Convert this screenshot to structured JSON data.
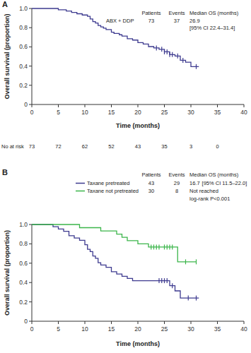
{
  "chart_data": [
    {
      "type": "step",
      "title": "A",
      "x_label": "Time (months)",
      "y_label": "Overall survival (proportion)",
      "xlim": [
        0,
        40
      ],
      "xticks": [
        0,
        5,
        10,
        15,
        20,
        25,
        30,
        35,
        40
      ],
      "ylim": [
        0,
        1
      ],
      "yticks": [
        0,
        0.2,
        0.4,
        0.6,
        0.8,
        {
          "value": 1,
          "label": "1.0"
        }
      ],
      "grid": false,
      "line_style": "step",
      "series": [
        {
          "name": "ABX + DDP",
          "color": "#3d3a8f",
          "x": [
            0,
            5,
            6.5,
            7.5,
            8.5,
            9.5,
            10.5,
            11,
            11.5,
            12,
            12.5,
            13,
            13.5,
            14,
            15,
            15.5,
            16.5,
            17,
            18,
            19,
            20,
            21,
            22,
            23,
            24,
            25,
            26,
            27,
            28,
            29,
            30,
            31.5
          ],
          "values": [
            1,
            0.986,
            0.973,
            0.959,
            0.945,
            0.932,
            0.918,
            0.89,
            0.863,
            0.849,
            0.822,
            0.808,
            0.795,
            0.781,
            0.753,
            0.74,
            0.726,
            0.712,
            0.685,
            0.671,
            0.644,
            0.63,
            0.603,
            0.589,
            0.575,
            0.548,
            0.52,
            0.505,
            0.46,
            0.44,
            0.395,
            0.395
          ],
          "censored": [
            23.5,
            24.5,
            25,
            25.5,
            26,
            26.5,
            27.5,
            28.5,
            31
          ]
        }
      ],
      "table": {
        "columns": [
          "Patients",
          "Events",
          "Median OS (months)"
        ],
        "rows": [
          {
            "patients": 73,
            "events": 37,
            "median": 26.9,
            "ci": "[95% CI 22.4–31.4]"
          }
        ]
      },
      "at_risk": {
        "label": "No at risk",
        "x": [
          0,
          5,
          10,
          15,
          20,
          25,
          30,
          35
        ],
        "values": [
          73,
          72,
          62,
          52,
          43,
          35,
          3,
          0
        ]
      }
    },
    {
      "type": "step",
      "title": "B",
      "x_label": "Time (months)",
      "y_label": "Overall survival (proportion)",
      "xlim": [
        0,
        40
      ],
      "xticks": [
        0,
        5,
        10,
        15,
        20,
        25,
        30,
        35,
        40
      ],
      "ylim": [
        0,
        1
      ],
      "yticks": [
        0,
        0.2,
        0.4,
        0.6,
        0.8,
        {
          "value": 1,
          "label": "1.0"
        }
      ],
      "grid": false,
      "line_style": "step",
      "series": [
        {
          "name": "Taxane pretreated",
          "color": "#3d3a8f",
          "x": [
            0,
            4,
            5,
            6,
            7,
            8,
            9,
            10,
            10.5,
            11,
            11.5,
            12,
            12.5,
            13,
            14,
            15,
            16,
            17,
            18,
            19,
            22,
            26,
            27,
            28,
            31.5
          ],
          "values": [
            1,
            0.977,
            0.953,
            0.93,
            0.884,
            0.86,
            0.837,
            0.791,
            0.744,
            0.72,
            0.674,
            0.651,
            0.605,
            0.581,
            0.558,
            0.512,
            0.488,
            0.465,
            0.442,
            0.419,
            0.419,
            0.367,
            0.314,
            0.24,
            0.24
          ],
          "censored": [
            24,
            24.5,
            25,
            25.5,
            26.5,
            29.5,
            31
          ]
        },
        {
          "name": "Taxane not pretreated",
          "color": "#3bb54a",
          "x": [
            0,
            9,
            13,
            16,
            17,
            18,
            20,
            22,
            27.5,
            31
          ],
          "values": [
            1,
            0.967,
            0.933,
            0.9,
            0.867,
            0.833,
            0.8,
            0.767,
            0.614,
            0.614
          ],
          "censored": [
            22.5,
            23,
            23.5,
            24,
            25,
            25.5,
            26,
            26.5,
            29,
            31
          ]
        }
      ],
      "table": {
        "columns": [
          "Patients",
          "Events",
          "Median OS (months)"
        ],
        "rows": [
          {
            "patients": 43,
            "events": 29,
            "median": 16.7,
            "ci": "[95% CI 11.5–22.0]"
          },
          {
            "patients": 30,
            "events": 8,
            "median": "Not reached"
          }
        ]
      },
      "annotation": "log-rank P<0.001"
    }
  ]
}
